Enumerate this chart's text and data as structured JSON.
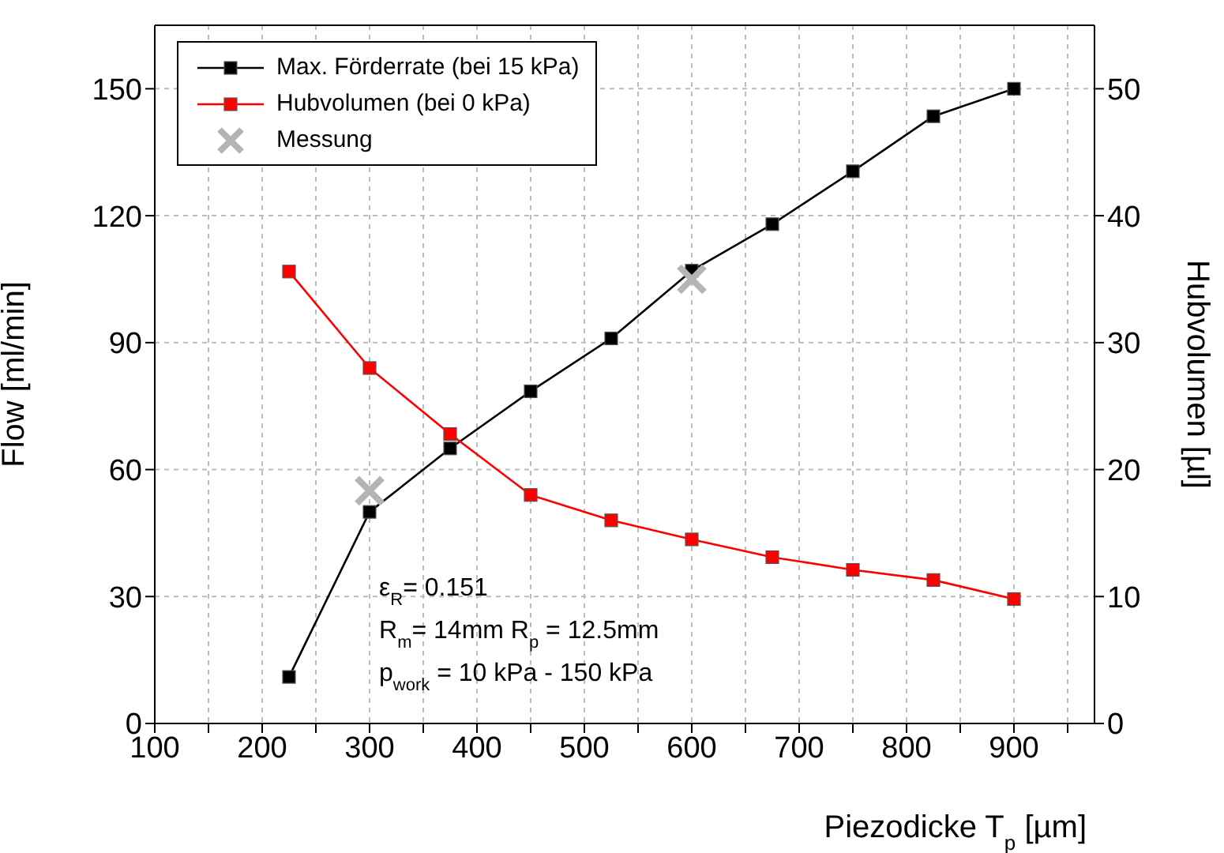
{
  "chart_data": {
    "type": "line",
    "xlabel": "Piezodicke T$_{p}$ [µm]",
    "ylabel": "Flow [ml/min]",
    "y2label": "Hubvolumen [µl]",
    "xlim": [
      100,
      975
    ],
    "xticks": [
      100,
      {
        "value": 150,
        "label": null
      },
      200,
      {
        "value": 250,
        "label": null
      },
      300,
      {
        "value": 350,
        "label": null
      },
      400,
      {
        "value": 450,
        "label": null
      },
      500,
      {
        "value": 550,
        "label": null
      },
      600,
      {
        "value": 650,
        "label": null
      },
      700,
      {
        "value": 750,
        "label": null
      },
      800,
      {
        "value": 850,
        "label": null
      },
      900,
      {
        "value": 950,
        "label": null
      }
    ],
    "ylim": [
      0,
      165
    ],
    "yticks": [
      0,
      30,
      60,
      90,
      120,
      150
    ],
    "y2lim": [
      0,
      55
    ],
    "y2ticks": [
      0,
      10,
      20,
      30,
      40,
      50
    ],
    "grid": true,
    "legend": "top left",
    "marker": "square",
    "line_style": "solid",
    "series": [
      {
        "name": "Max. Förderrate (bei 15 kPa)",
        "color": "#000000",
        "x": [
          225,
          300,
          375,
          450,
          525,
          600,
          675,
          750,
          825,
          900
        ],
        "values": [
          11,
          50,
          65,
          78.5,
          91,
          107,
          118,
          130.5,
          143.5,
          150
        ]
      },
      {
        "name": "Hubvolumen (bei 0 kPa)",
        "color": "#ff0000",
        "axis": "y2",
        "x": [
          225,
          300,
          375,
          450,
          525,
          600,
          675,
          750,
          825,
          900
        ],
        "values": [
          35.6,
          28,
          22.8,
          18,
          16,
          14.5,
          13.1,
          12.1,
          11.3,
          9.8
        ]
      },
      {
        "name": "Messung",
        "color": "#b4b4b4",
        "type": "scatter",
        "marker": "cross",
        "x": [
          300,
          600
        ],
        "values": [
          55,
          105
        ]
      }
    ],
    "annotations": [
      "ε$_{R}$= 0.151",
      "R$_{m}$= 14mm  R$_{p}$ = 12.5mm",
      "p$_{work}$ = 10 kPa - 150 kPa"
    ]
  }
}
